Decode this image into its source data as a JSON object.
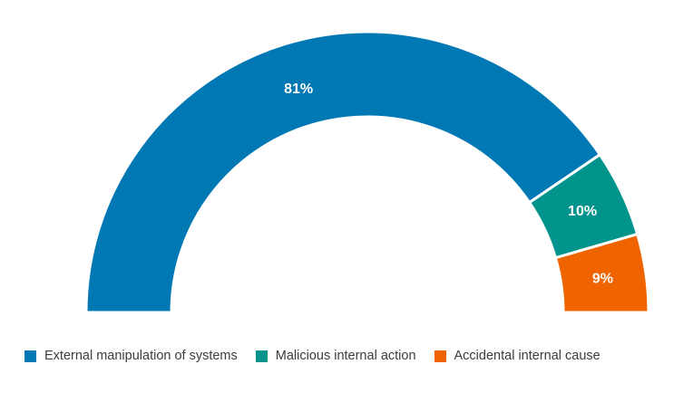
{
  "chart_data": {
    "type": "pie",
    "variant": "half-donut",
    "values": [
      81,
      10,
      9
    ],
    "data_labels": [
      "81%",
      "10%",
      "9%"
    ],
    "legend": [
      {
        "label": "External manipulation of systems",
        "color": "#0078b4"
      },
      {
        "label": "Malicious internal action",
        "color": "#00948c"
      },
      {
        "label": "Accidental internal cause",
        "color": "#f06400"
      }
    ],
    "legend_position": "bottom-left"
  }
}
